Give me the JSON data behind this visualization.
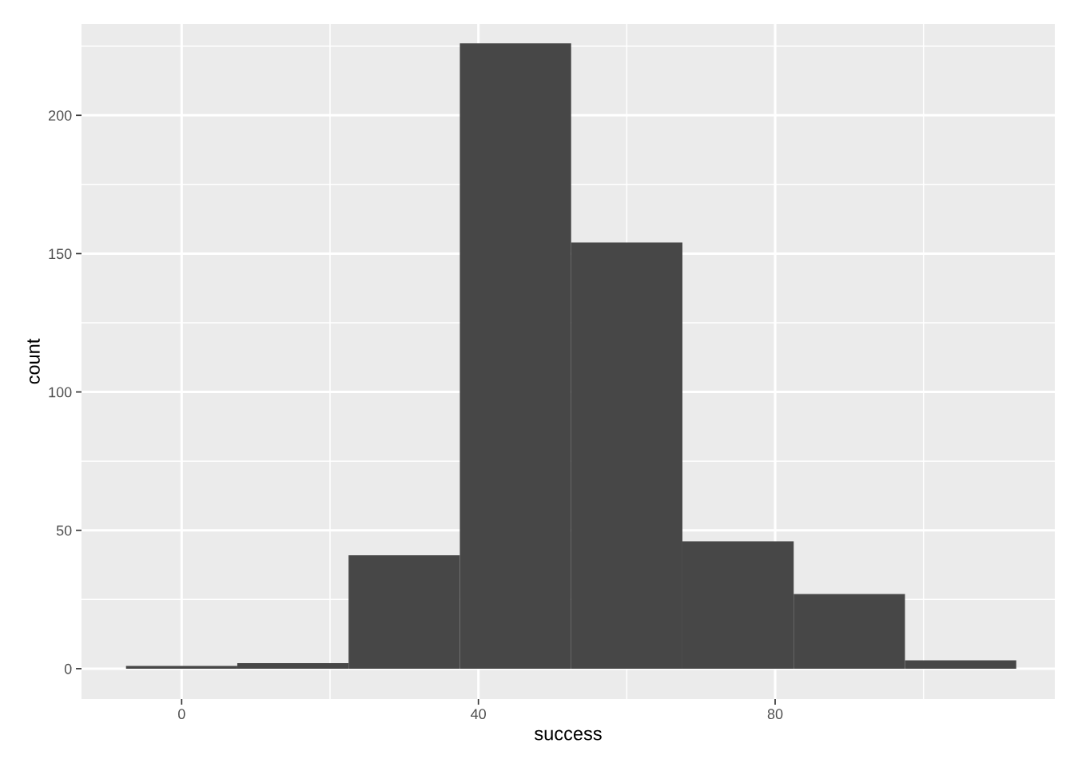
{
  "chart_data": {
    "type": "histogram",
    "xlabel": "success",
    "ylabel": "count",
    "bins": [
      -7.5,
      7.5,
      22.5,
      37.5,
      52.5,
      67.5,
      82.5,
      97.5,
      112.5
    ],
    "values": [
      1,
      2,
      41,
      226,
      154,
      46,
      27,
      3
    ],
    "color": "#474747",
    "xlim": [
      -13.5,
      117.7
    ],
    "xticks": [
      0,
      40,
      80
    ],
    "ylim": [
      -11,
      233
    ],
    "yticks": [
      0,
      50,
      100,
      150,
      200
    ],
    "grid": true
  }
}
